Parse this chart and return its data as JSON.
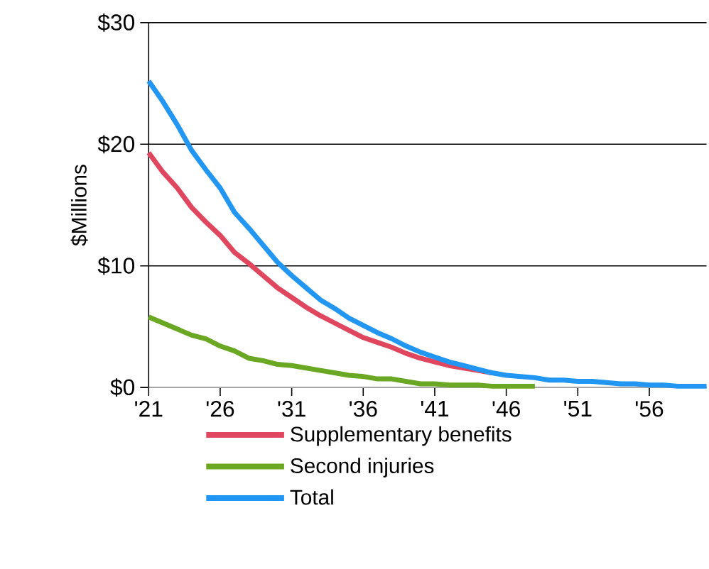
{
  "chart_data": {
    "type": "line",
    "ylabel": "$Millions",
    "x": [
      21,
      22,
      23,
      24,
      25,
      26,
      27,
      28,
      29,
      30,
      31,
      32,
      33,
      34,
      35,
      36,
      37,
      38,
      39,
      40,
      41,
      42,
      43,
      44,
      45,
      46,
      47,
      48,
      49,
      50,
      51,
      52,
      53,
      54,
      55,
      56,
      57,
      58,
      59,
      60
    ],
    "series": [
      {
        "name": "Supplementary benefits",
        "color": "#e0475f",
        "values": [
          19.3,
          17.7,
          16.4,
          14.8,
          13.6,
          12.5,
          11.1,
          10.2,
          9.2,
          8.2,
          7.4,
          6.6,
          5.9,
          5.3,
          4.7,
          4.1,
          3.7,
          3.3,
          2.8,
          2.4,
          2.1,
          1.8,
          1.6,
          1.4,
          1.2,
          null,
          null,
          null,
          null,
          null,
          null,
          null,
          null,
          null,
          null,
          null,
          null,
          null,
          null,
          null
        ]
      },
      {
        "name": "Second injuries",
        "color": "#6aa823",
        "values": [
          5.8,
          5.3,
          4.8,
          4.3,
          4.0,
          3.4,
          3.0,
          2.4,
          2.2,
          1.9,
          1.8,
          1.6,
          1.4,
          1.2,
          1.0,
          0.9,
          0.7,
          0.7,
          0.5,
          0.3,
          0.3,
          0.2,
          0.2,
          0.2,
          0.1,
          0.1,
          0.1,
          0.1,
          null,
          null,
          null,
          null,
          null,
          null,
          null,
          null,
          null,
          null,
          null,
          null
        ]
      },
      {
        "name": "Total",
        "color": "#2196f3",
        "values": [
          25.2,
          23.5,
          21.6,
          19.5,
          17.9,
          16.4,
          14.4,
          13.1,
          11.7,
          10.3,
          9.2,
          8.2,
          7.2,
          6.5,
          5.7,
          5.1,
          4.5,
          4.0,
          3.4,
          2.9,
          2.5,
          2.1,
          1.8,
          1.5,
          1.2,
          1.0,
          0.9,
          0.8,
          0.6,
          0.6,
          0.5,
          0.5,
          0.4,
          0.3,
          0.3,
          0.2,
          0.2,
          0.1,
          0.1,
          0.1
        ]
      }
    ],
    "xlim": [
      21,
      60
    ],
    "xticks": [
      {
        "value": 21,
        "label": "'21"
      },
      {
        "value": 26,
        "label": "'26"
      },
      {
        "value": 31,
        "label": "'31"
      },
      {
        "value": 36,
        "label": "'36"
      },
      {
        "value": 41,
        "label": "'41"
      },
      {
        "value": 46,
        "label": "'46"
      },
      {
        "value": 51,
        "label": "'51"
      },
      {
        "value": 56,
        "label": "'56"
      }
    ],
    "ylim": [
      0,
      30
    ],
    "yticks": [
      {
        "value": 0,
        "label": "$0"
      },
      {
        "value": 10,
        "label": "$10"
      },
      {
        "value": 20,
        "label": "$20"
      },
      {
        "value": 30,
        "label": "$30"
      }
    ],
    "grid": "y",
    "legend": "bottom",
    "marker": "none",
    "line_style": "solid"
  }
}
